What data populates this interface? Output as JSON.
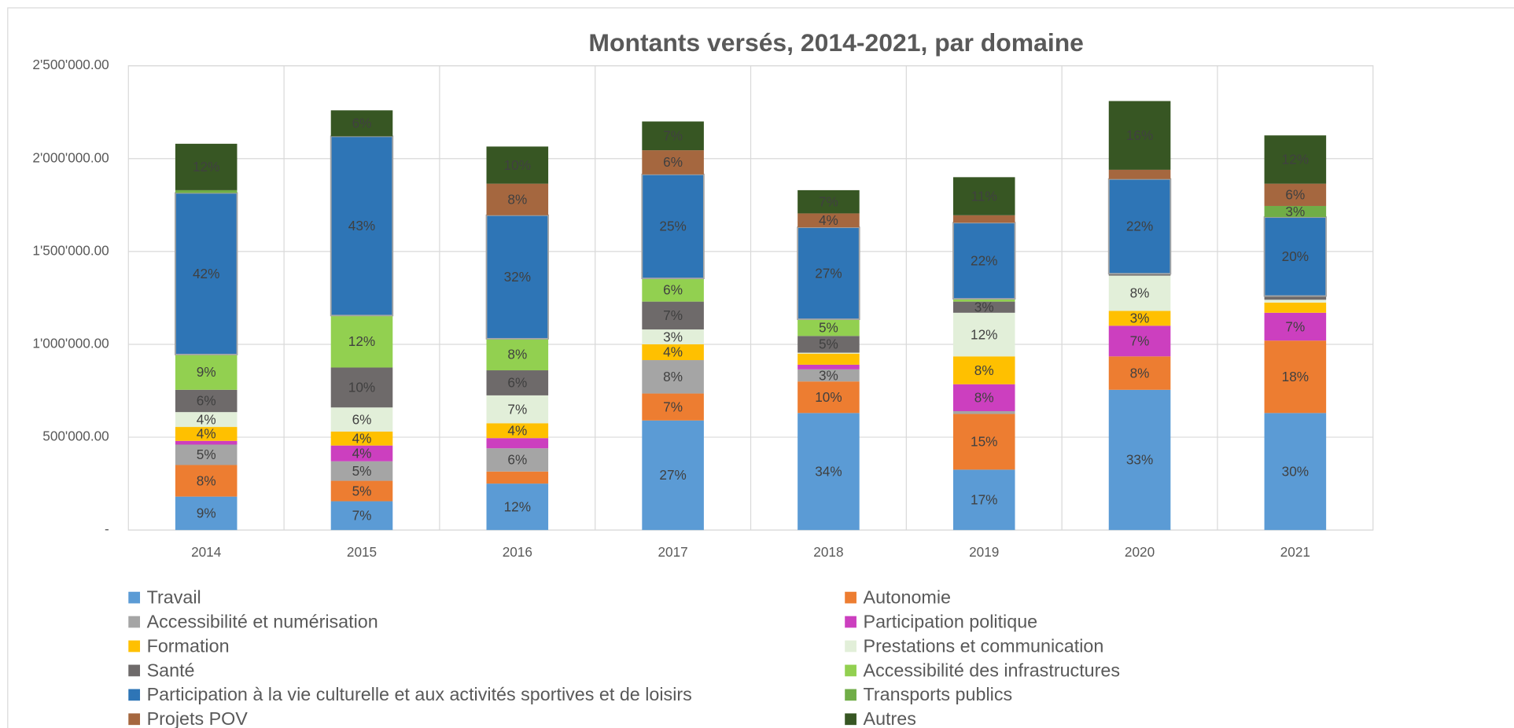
{
  "chart_data": {
    "type": "stacked_bar",
    "title": "Montants versés, 2014-2021, par domaine",
    "categories": [
      "2014",
      "2015",
      "2016",
      "2017",
      "2018",
      "2019",
      "2020",
      "2021"
    ],
    "ylim": [
      0,
      2500000
    ],
    "yticks": [
      {
        "value": 0,
        "label": "-"
      },
      {
        "value": 500000,
        "label": "500'000.00"
      },
      {
        "value": 1000000,
        "label": "1'000'000.00"
      },
      {
        "value": 1500000,
        "label": "1'500'000.00"
      },
      {
        "value": 2000000,
        "label": "2'000'000.00"
      },
      {
        "value": 2500000,
        "label": "2'500'000.00"
      }
    ],
    "grid": true,
    "legend": "bottom",
    "series": [
      {
        "name": "Travail",
        "color": "#5b9bd5",
        "values": [
          180000,
          155000,
          250000,
          590000,
          630000,
          325000,
          755000,
          630000
        ],
        "value_labels": [
          "9%",
          "7%",
          "12%",
          "27%",
          "34%",
          "17%",
          "33%",
          "30%"
        ]
      },
      {
        "name": "Autonomie",
        "color": "#ed7d31",
        "values": [
          170000,
          110000,
          65000,
          145000,
          170000,
          300000,
          180000,
          390000
        ],
        "value_labels": [
          "8%",
          "5%",
          null,
          "7%",
          "10%",
          "15%",
          "8%",
          "18%"
        ]
      },
      {
        "name": "Accessibilité et numérisation",
        "color": "#a5a5a5",
        "values": [
          110000,
          105000,
          125000,
          180000,
          65000,
          15000,
          0,
          0
        ],
        "value_labels": [
          "5%",
          "5%",
          "6%",
          "8%",
          "3%",
          null,
          null,
          null
        ]
      },
      {
        "name": "Participation politique",
        "color": "#cc3fbf",
        "values": [
          20000,
          85000,
          55000,
          0,
          25000,
          145000,
          165000,
          150000
        ],
        "value_labels": [
          null,
          "4%",
          null,
          null,
          null,
          "8%",
          "7%",
          "7%"
        ]
      },
      {
        "name": "Formation",
        "color": "#ffc000",
        "values": [
          75000,
          75000,
          80000,
          85000,
          60000,
          150000,
          80000,
          55000
        ],
        "value_labels": [
          "4%",
          "4%",
          "4%",
          "4%",
          null,
          "8%",
          "3%",
          null
        ]
      },
      {
        "name": "Prestations et communication",
        "color": "#e2efd9",
        "values": [
          80000,
          130000,
          150000,
          80000,
          5000,
          235000,
          190000,
          15000
        ],
        "value_labels": [
          "4%",
          "6%",
          "7%",
          "3%",
          null,
          "12%",
          "8%",
          null
        ]
      },
      {
        "name": "Santé",
        "color": "#6e6a6a",
        "values": [
          120000,
          215000,
          135000,
          150000,
          90000,
          60000,
          10000,
          20000
        ],
        "value_labels": [
          "6%",
          "10%",
          "6%",
          "7%",
          "5%",
          "3%",
          null,
          null
        ]
      },
      {
        "name": "Accessibilité des infrastructures",
        "color": "#92d050",
        "values": [
          190000,
          280000,
          170000,
          125000,
          90000,
          15000,
          0,
          0
        ],
        "value_labels": [
          "9%",
          "12%",
          "8%",
          "6%",
          "5%",
          null,
          null,
          null
        ]
      },
      {
        "name": "Participation à la vie culturelle et aux activités sportives et de loisirs",
        "color": "#2e75b6",
        "values": [
          870000,
          965000,
          665000,
          560000,
          495000,
          410000,
          510000,
          425000
        ],
        "value_labels": [
          "42%",
          "43%",
          "32%",
          "25%",
          "27%",
          "22%",
          "22%",
          "20%"
        ]
      },
      {
        "name": "Transports publics",
        "color": "#70ad47",
        "values": [
          15000,
          0,
          0,
          0,
          0,
          0,
          0,
          60000
        ],
        "value_labels": [
          null,
          null,
          null,
          null,
          null,
          null,
          null,
          "3%"
        ]
      },
      {
        "name": "Projets POV",
        "color": "#a5673f",
        "values": [
          0,
          0,
          170000,
          130000,
          75000,
          40000,
          50000,
          120000
        ],
        "value_labels": [
          null,
          null,
          "8%",
          "6%",
          "4%",
          null,
          null,
          "6%"
        ]
      },
      {
        "name": "Autres",
        "color": "#375623",
        "values": [
          250000,
          140000,
          200000,
          155000,
          125000,
          205000,
          370000,
          260000
        ],
        "value_labels": [
          "12%",
          "6%",
          "10%",
          "7%",
          "7%",
          "11%",
          "16%",
          "12%"
        ]
      }
    ]
  }
}
